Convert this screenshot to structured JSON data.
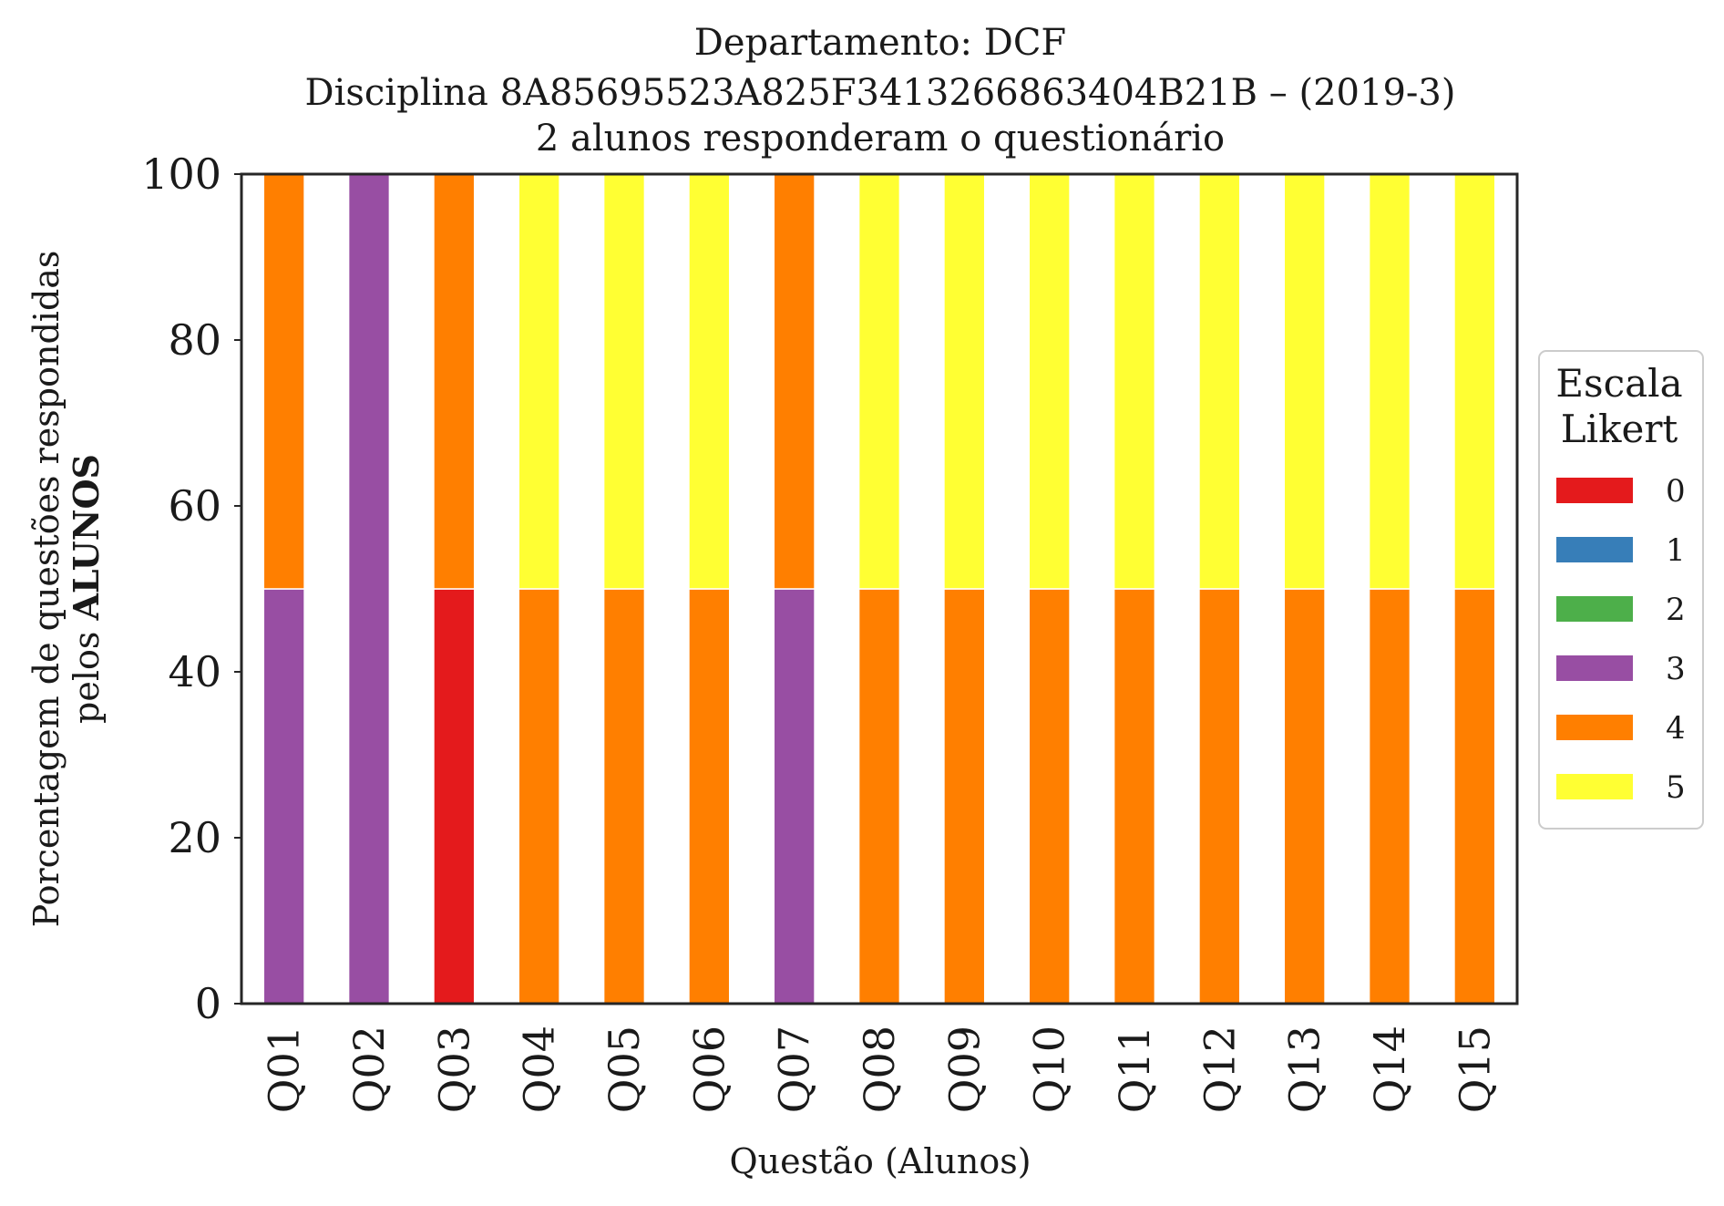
{
  "chart_data": {
    "type": "bar",
    "stacked": true,
    "title_lines": [
      "Departamento: DCF",
      "Disciplina 8A85695523A825F3413266863404B21B – (2019-3)",
      "2 alunos responderam o questionário"
    ],
    "xlabel": "Questão (Alunos)",
    "ylabel_line1": "Porcentagem de questões respondidas",
    "ylabel_line2_prefix": "pelos ",
    "ylabel_line2_bold": "ALUNOS",
    "ylim": [
      0,
      100
    ],
    "yticks": [
      "0",
      "20",
      "40",
      "60",
      "80",
      "100"
    ],
    "categories": [
      "Q01",
      "Q02",
      "Q03",
      "Q04",
      "Q05",
      "Q06",
      "Q07",
      "Q08",
      "Q09",
      "Q10",
      "Q11",
      "Q12",
      "Q13",
      "Q14",
      "Q15"
    ],
    "series": [
      {
        "name": "0",
        "color": "#e41a1c",
        "values": [
          0,
          0,
          50,
          0,
          0,
          0,
          0,
          0,
          0,
          0,
          0,
          0,
          0,
          0,
          0
        ]
      },
      {
        "name": "1",
        "color": "#377eb8",
        "values": [
          0,
          0,
          0,
          0,
          0,
          0,
          0,
          0,
          0,
          0,
          0,
          0,
          0,
          0,
          0
        ]
      },
      {
        "name": "2",
        "color": "#4daf4a",
        "values": [
          0,
          0,
          0,
          0,
          0,
          0,
          0,
          0,
          0,
          0,
          0,
          0,
          0,
          0,
          0
        ]
      },
      {
        "name": "3",
        "color": "#984ea3",
        "values": [
          50,
          100,
          0,
          0,
          0,
          0,
          50,
          0,
          0,
          0,
          0,
          0,
          0,
          0,
          0
        ]
      },
      {
        "name": "4",
        "color": "#ff7f00",
        "values": [
          50,
          0,
          50,
          50,
          50,
          50,
          50,
          50,
          50,
          50,
          50,
          50,
          50,
          50,
          50
        ]
      },
      {
        "name": "5",
        "color": "#ffff33",
        "values": [
          0,
          0,
          0,
          50,
          50,
          50,
          0,
          50,
          50,
          50,
          50,
          50,
          50,
          50,
          50
        ]
      }
    ],
    "legend": {
      "title_line1": "Escala",
      "title_line2": "Likert",
      "position": "center-right"
    },
    "grid": false
  }
}
